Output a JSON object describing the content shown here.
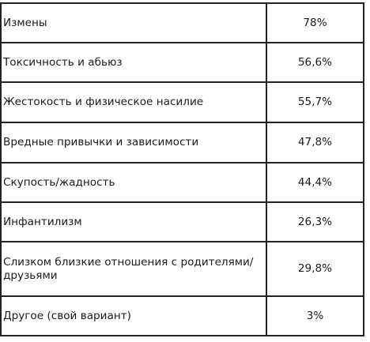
{
  "table": {
    "rows": [
      {
        "label": "Измены",
        "value": "78%"
      },
      {
        "label": "Токсичность и абьюз",
        "value": "56,6%"
      },
      {
        "label": "Жестокость и физическое насилие",
        "value": "55,7%"
      },
      {
        "label": "Вредные привычки и зависимости",
        "value": "47,8%"
      },
      {
        "label": "Скупость/жадность",
        "value": "44,4%"
      },
      {
        "label": "Инфантилизм",
        "value": "26,3%"
      },
      {
        "label": "Слизком близкие отношения с родителями/ друзьями",
        "value": "29,8%"
      },
      {
        "label": "Другое (свой вариант)",
        "value": "3%"
      }
    ]
  }
}
